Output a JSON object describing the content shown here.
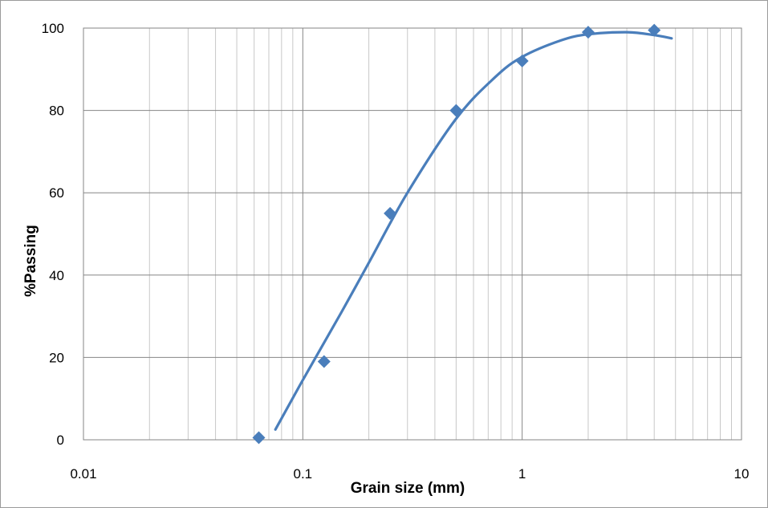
{
  "chart_data": {
    "type": "scatter",
    "title": "",
    "xlabel": "Grain size (mm)",
    "ylabel": "%Passing",
    "x_scale": "log",
    "xlim": [
      0.01,
      10
    ],
    "ylim": [
      0,
      100
    ],
    "x_ticks": [
      "0.01",
      "0.1",
      "1",
      "10"
    ],
    "y_ticks": [
      "0",
      "20",
      "40",
      "60",
      "80",
      "100"
    ],
    "grid": true,
    "legend": "none",
    "series": [
      {
        "marker": "diamond",
        "color": "#4a7ebb",
        "x": [
          0.063,
          0.125,
          0.25,
          0.5,
          1,
          2,
          4
        ],
        "y": [
          0.5,
          19,
          55,
          80,
          92,
          99,
          99.5
        ]
      }
    ],
    "trendline": {
      "color": "#4a7ebb",
      "x": [
        0.075,
        0.1,
        0.15,
        0.2,
        0.3,
        0.5,
        0.75,
        1,
        1.5,
        2,
        3,
        4,
        4.8
      ],
      "y": [
        2.5,
        14.5,
        31,
        43,
        60,
        78,
        88,
        93,
        97,
        98.5,
        99,
        98.3,
        97.5
      ]
    }
  }
}
